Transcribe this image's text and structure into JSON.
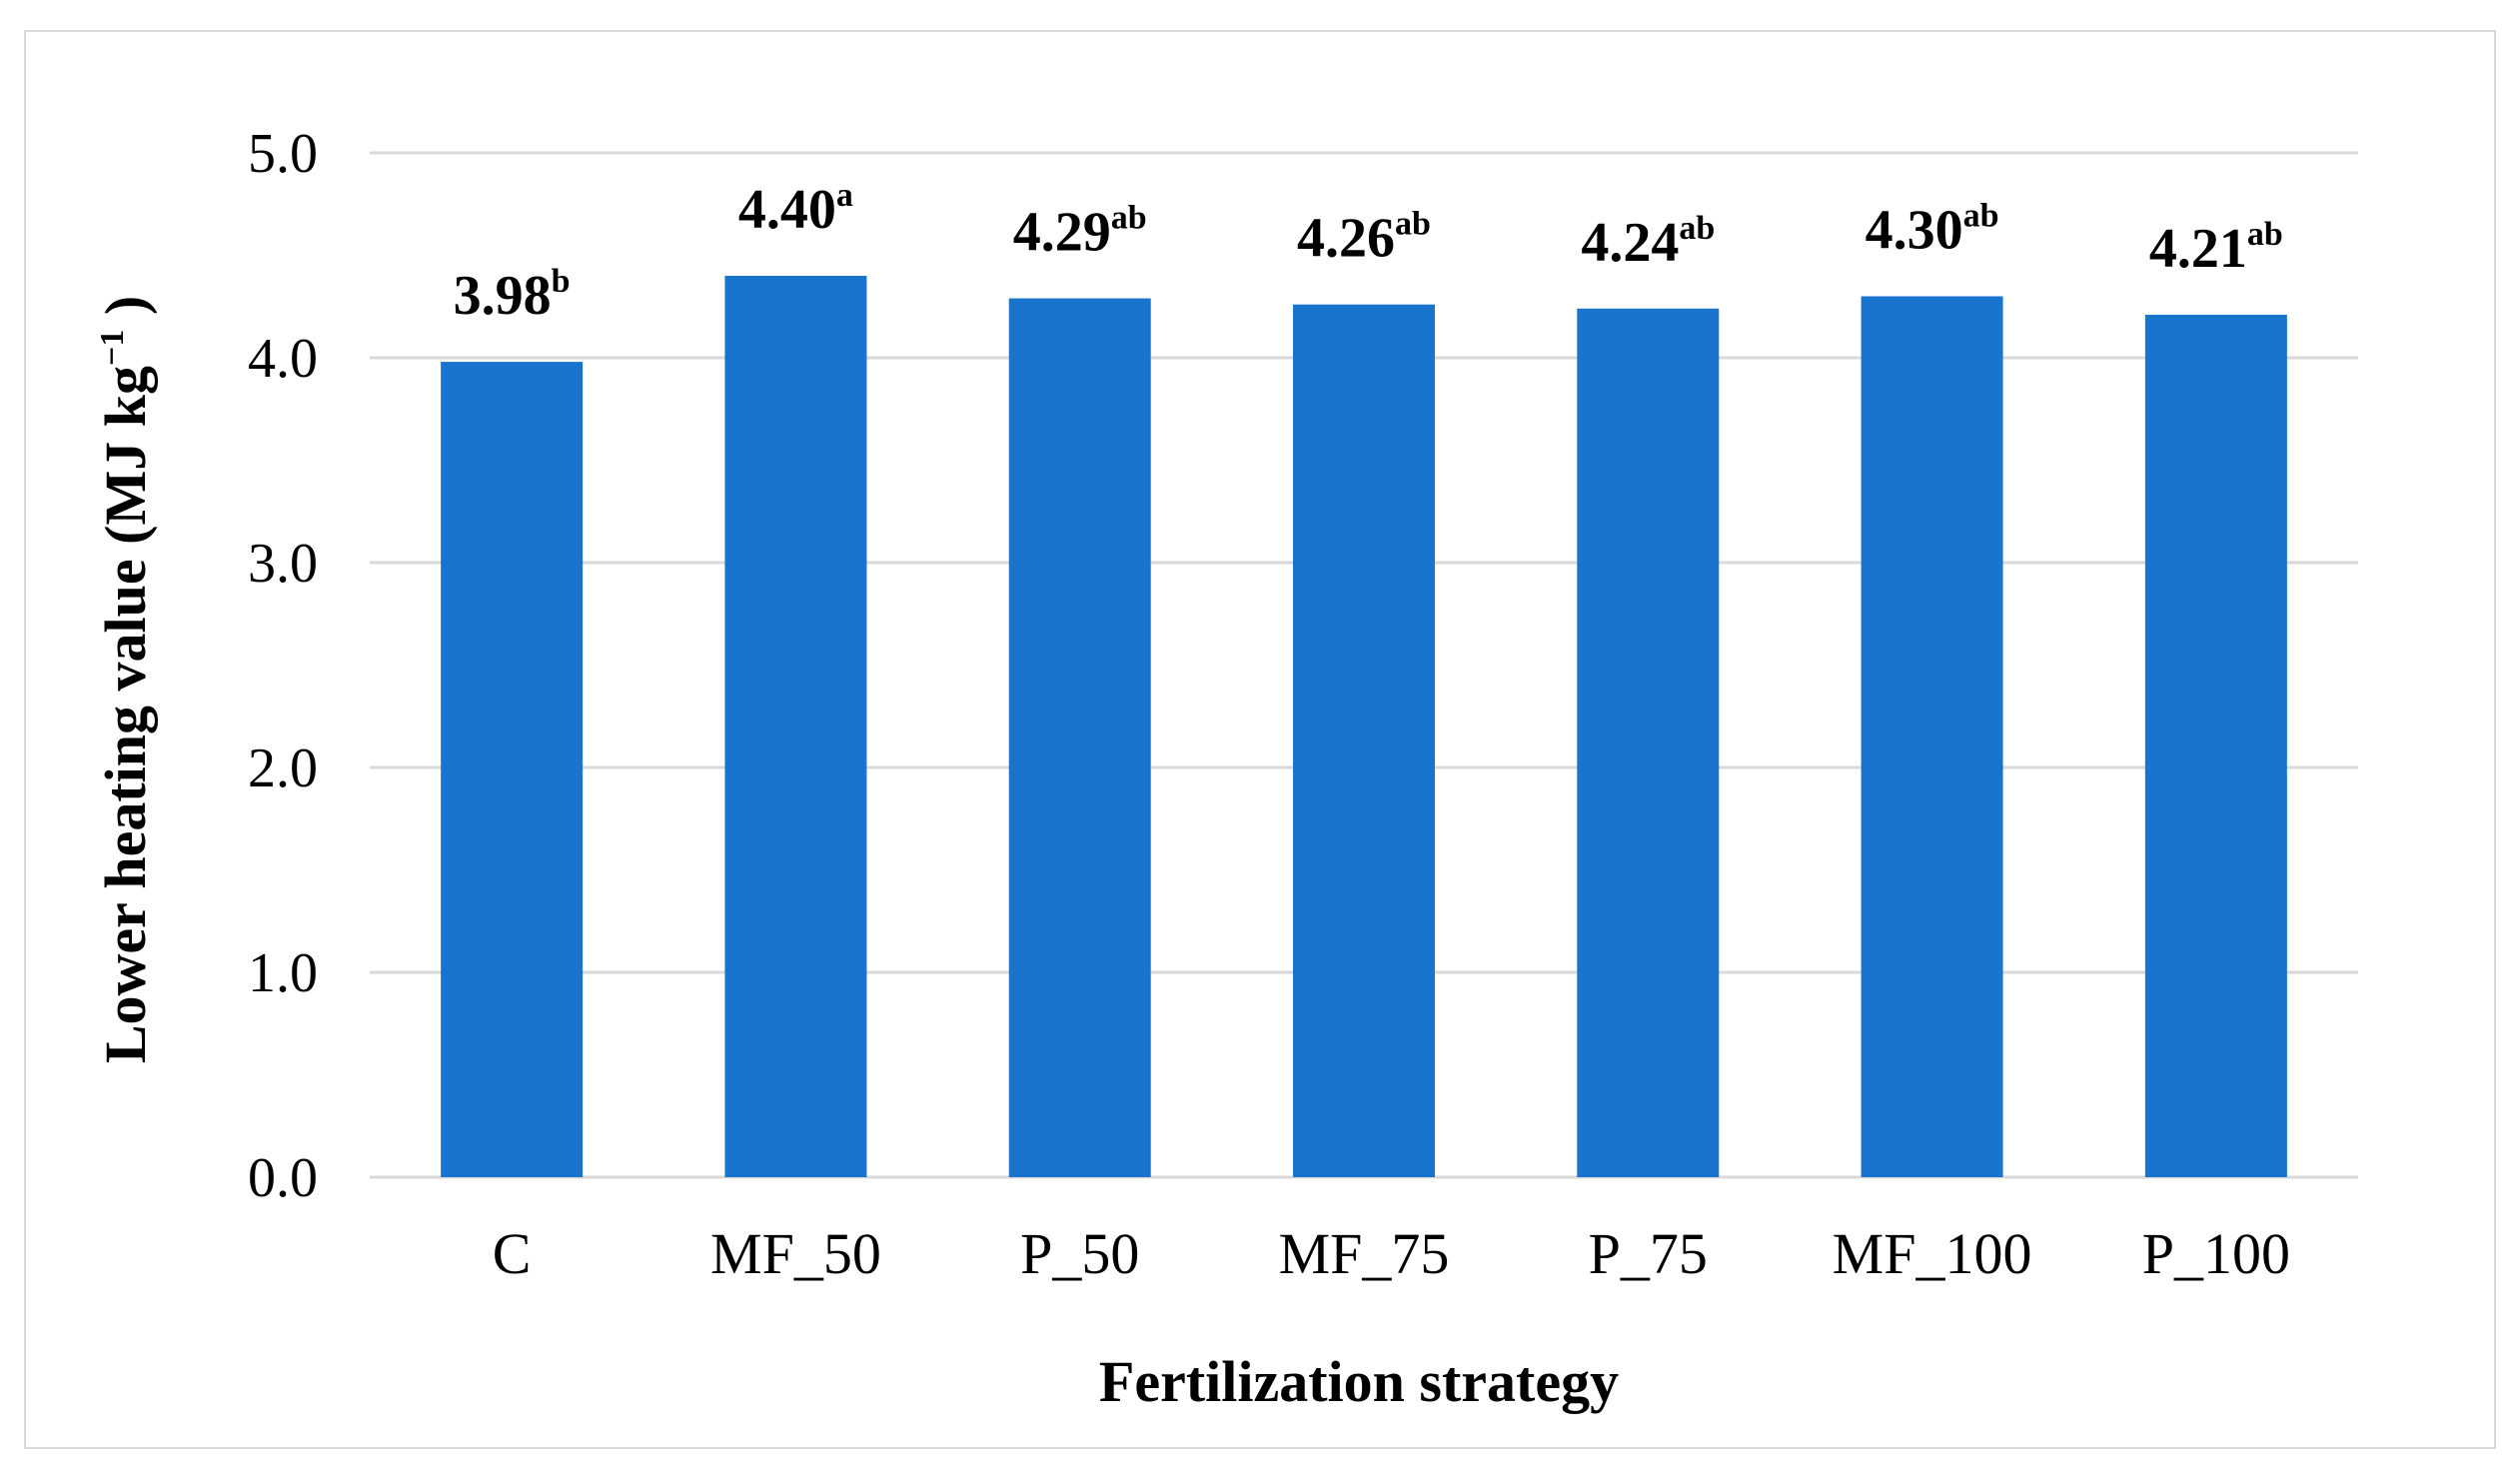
{
  "chart_data": {
    "type": "bar",
    "title": "",
    "xlabel": "Fertilization strategy",
    "ylabel": "Lower heating value  (MJ kg",
    "ylabel_sup": "−1",
    "ylabel_end": " )",
    "ylim": [
      0,
      5
    ],
    "yticks": [
      "0.0",
      "1.0",
      "2.0",
      "3.0",
      "4.0",
      "5.0"
    ],
    "grid": true,
    "bar_color": "#1874cd",
    "grid_color": "#d9d9d9",
    "categories": [
      "C",
      "MF_50",
      "P_50",
      "MF_75",
      "P_75",
      "MF_100",
      "P_100"
    ],
    "values": [
      3.98,
      4.4,
      4.29,
      4.26,
      4.24,
      4.3,
      4.21
    ],
    "data_labels": [
      "3.98",
      "4.40",
      "4.29",
      "4.26",
      "4.24",
      "4.30",
      "4.21"
    ],
    "letters": [
      "b",
      "a",
      "ab",
      "ab",
      "ab",
      "ab",
      "ab"
    ]
  }
}
